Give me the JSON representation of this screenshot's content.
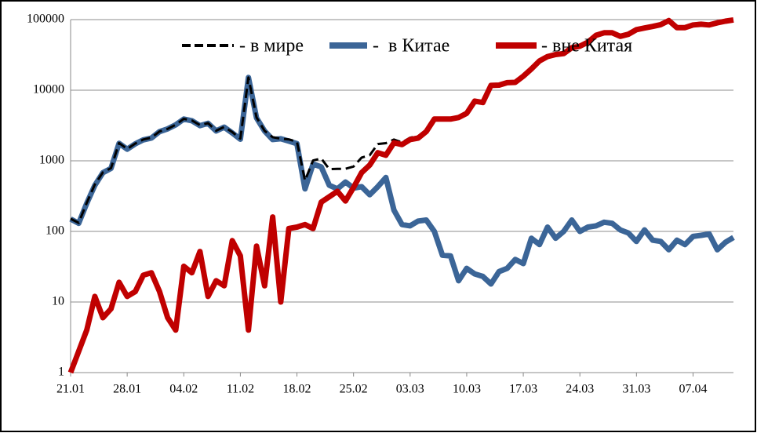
{
  "chart_data": {
    "type": "line",
    "log": true,
    "grid": true,
    "legend": "top",
    "ylim": [
      1,
      100000
    ],
    "yticks": [
      1,
      10,
      100,
      1000,
      10000,
      100000
    ],
    "categories": [
      "21.01",
      null,
      null,
      null,
      null,
      null,
      null,
      "28.01",
      null,
      null,
      null,
      null,
      null,
      null,
      "04.02",
      null,
      null,
      null,
      null,
      null,
      null,
      "11.02",
      null,
      null,
      null,
      null,
      null,
      null,
      "18.02",
      null,
      null,
      null,
      null,
      null,
      null,
      "25.02",
      null,
      null,
      null,
      null,
      null,
      null,
      "03.03",
      null,
      null,
      null,
      null,
      null,
      null,
      "10.03",
      null,
      null,
      null,
      null,
      null,
      null,
      "17.03",
      null,
      null,
      null,
      null,
      null,
      null,
      "24.03",
      null,
      null,
      null,
      null,
      null,
      null,
      "31.03",
      null,
      null,
      null,
      null,
      null,
      null,
      "07.04",
      null,
      null,
      null,
      null,
      null
    ],
    "series": [
      {
        "name": "- в мире",
        "color": "#000000",
        "dash": true,
        "values": [
          151,
          132,
          254,
          462,
          686,
          788,
          1789,
          1472,
          1754,
          2004,
          2126,
          2604,
          2836,
          3244,
          3932,
          3726,
          3202,
          3412,
          2670,
          3017,
          2554,
          2065,
          15154,
          4112,
          2657,
          2160,
          2060,
          2010,
          1865,
          525,
          1010,
          1080,
          760,
          770,
          770,
          830,
          1110,
          1200,
          1730,
          1780,
          2000,
          1825,
          2120,
          2240,
          2745,
          4000,
          3946,
          3945,
          4120,
          4730,
          7025,
          6723,
          11718,
          11827,
          12830,
          12940,
          15835,
          20080,
          26065,
          30115,
          32080,
          33100,
          40145,
          42100,
          48115,
          60120,
          65135,
          65130,
          58105,
          62095,
          72072,
          76105,
          80075,
          85072,
          97055,
          77075,
          77065,
          84085,
          86088,
          84092,
          90055,
          95070,
          99082
        ]
      },
      {
        "name": "-  в Китае",
        "color": "#3b6597",
        "dash": false,
        "values": [
          150,
          130,
          250,
          450,
          680,
          780,
          1770,
          1460,
          1740,
          1980,
          2100,
          2590,
          2830,
          3240,
          3900,
          3700,
          3150,
          3400,
          2650,
          3000,
          2480,
          2020,
          15150,
          4050,
          2640,
          2000,
          2050,
          1900,
          1750,
          400,
          900,
          820,
          450,
          400,
          500,
          410,
          430,
          330,
          430,
          580,
          200,
          125,
          120,
          140,
          145,
          100,
          46,
          45,
          20,
          30,
          25,
          23,
          18,
          27,
          30,
          40,
          35,
          80,
          65,
          115,
          80,
          100,
          145,
          100,
          115,
          120,
          135,
          130,
          105,
          95,
          72,
          105,
          75,
          72,
          55,
          75,
          65,
          85,
          88,
          92,
          55,
          70,
          82
        ]
      },
      {
        "name": "- вне Китая",
        "color": "#c00000",
        "dash": false,
        "values": [
          1,
          2,
          4,
          12,
          6,
          8,
          19,
          12,
          14,
          24,
          26,
          14,
          6,
          4,
          32,
          26,
          52,
          12,
          20,
          17,
          74,
          45,
          4,
          62,
          17,
          160,
          10,
          110,
          115,
          125,
          110,
          260,
          310,
          370,
          270,
          420,
          680,
          870,
          1300,
          1200,
          1800,
          1700,
          2000,
          2100,
          2600,
          3900,
          3900,
          3900,
          4100,
          4700,
          7000,
          6700,
          11700,
          11800,
          12800,
          12900,
          15800,
          20000,
          26000,
          30000,
          32000,
          33000,
          40000,
          42000,
          48000,
          60000,
          65000,
          65000,
          58000,
          62000,
          72000,
          76000,
          80000,
          85000,
          97000,
          77000,
          77000,
          84000,
          86000,
          84000,
          90000,
          95000,
          99000
        ]
      }
    ]
  }
}
